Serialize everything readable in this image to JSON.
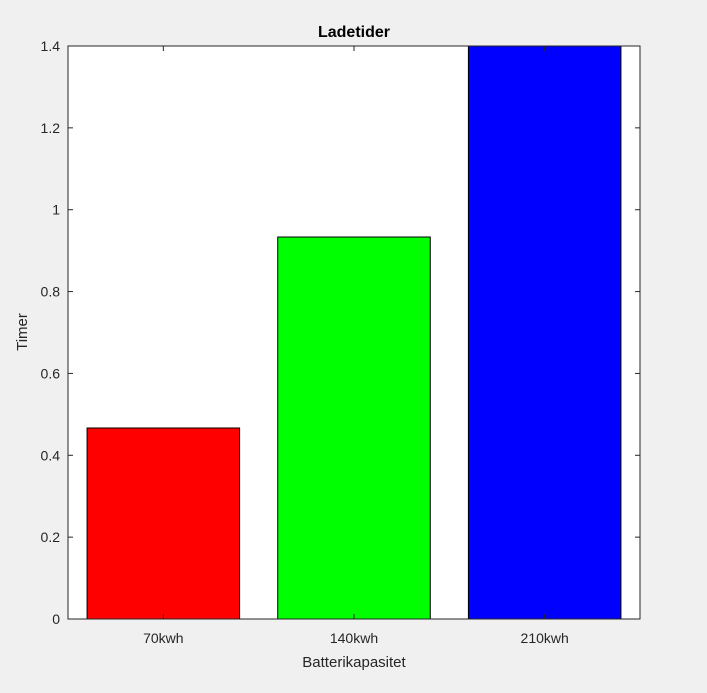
{
  "chart_data": {
    "type": "bar",
    "title": "Ladetider",
    "xlabel": "Batterikapasitet",
    "ylabel": "Timer",
    "categories": [
      "70kwh",
      "140kwh",
      "210kwh"
    ],
    "values": [
      0.4667,
      0.9333,
      1.4
    ],
    "bar_colors": [
      "#ff0000",
      "#00ff00",
      "#0000ff"
    ],
    "ylim": [
      0,
      1.4
    ],
    "yticks": [
      0,
      0.2,
      0.4,
      0.6,
      0.8,
      1,
      1.2,
      1.4
    ],
    "ytick_labels": [
      "0",
      "0.2",
      "0.4",
      "0.6",
      "0.8",
      "1",
      "1.2",
      "1.4"
    ],
    "grid": false,
    "legend": "none"
  }
}
